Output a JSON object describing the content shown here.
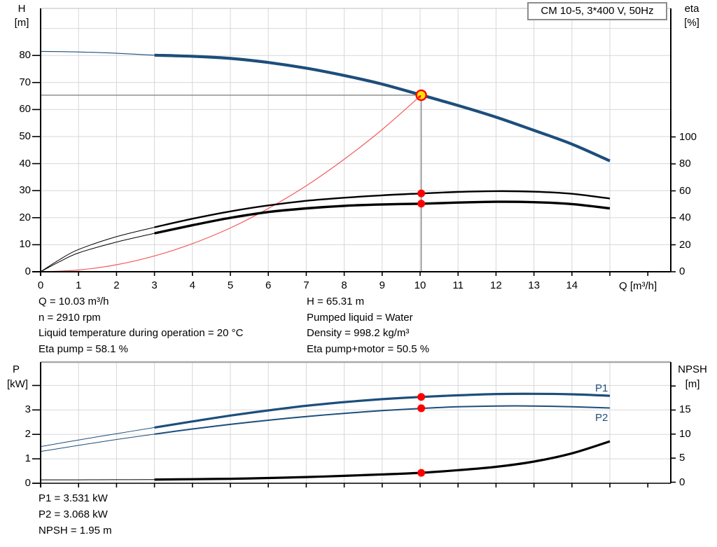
{
  "title_box": {
    "label": "CM 10-5, 3*400 V, 50Hz"
  },
  "colors": {
    "curve_blue": "#1d4e7b",
    "black": "#000000",
    "system_red": "#f25c5c",
    "dot_red": "#fe0000",
    "duty_yellow": "#ffe105",
    "grid": "#d7d7d7",
    "crosshair": "#8f8f8f",
    "chart_border_top": "#c9c9c9",
    "chart_border_strong": "#a9a9a9"
  },
  "top_chart": {
    "y_left_label_line1": "H",
    "y_left_label_line2": "[m]",
    "y_right_label_line1": "eta",
    "y_right_label_line2": "[%]",
    "x_label": "Q [m³/h]"
  },
  "bottom_chart": {
    "y_left_label_line1": "P",
    "y_left_label_line2": "[kW]",
    "y_right_label_line1": "NPSH",
    "y_right_label_line2": "[m]",
    "p1_label": "P1",
    "p2_label": "P2"
  },
  "info_left": [
    "Q = 10.03 m³/h",
    "n = 2910 rpm",
    "Liquid temperature during operation = 20 °C",
    "Eta pump = 58.1 %"
  ],
  "info_right": [
    "H = 65.31 m",
    "Pumped liquid = Water",
    "Density = 998.2 kg/m³",
    "Eta pump+motor = 50.5 %"
  ],
  "info_bottom": [
    "P1 = 3.531 kW",
    "P2 = 3.068 kW",
    "NPSH = 1.95 m"
  ],
  "chart_data": [
    {
      "type": "line",
      "id": "head-efficiency-chart",
      "x_axis": {
        "label": "Q [m³/h]",
        "range": [
          0,
          16.6
        ],
        "labeled_ticks": [
          0,
          1,
          2,
          3,
          4,
          5,
          6,
          7,
          8,
          9,
          10,
          11,
          12,
          13,
          14
        ],
        "unlabeled_ticks": [
          15,
          16
        ],
        "gridlines": [
          1,
          2,
          3,
          4,
          5,
          6,
          7,
          8,
          9,
          10,
          11,
          12,
          13,
          14,
          15
        ]
      },
      "y_left_axis": {
        "label": "H [m]",
        "range": [
          0,
          97.4
        ],
        "labeled_ticks": [
          0,
          10,
          20,
          30,
          40,
          50,
          60,
          70,
          80
        ],
        "unlabeled_ticks": [],
        "gridlines": [
          10,
          20,
          30,
          40,
          50,
          60,
          70,
          80,
          90
        ]
      },
      "y_right_axis": {
        "label": "eta [%]",
        "range": [
          0,
          195
        ],
        "labeled_ticks": [
          0,
          20,
          40,
          60,
          80,
          100
        ],
        "unlabeled_ticks": []
      },
      "series": [
        {
          "name": "system-curve",
          "axis": "left",
          "color_key": "system_red",
          "width": 1.2,
          "points": [
            [
              0,
              0
            ],
            [
              1,
              0.65
            ],
            [
              2,
              2.6
            ],
            [
              3,
              5.85
            ],
            [
              4,
              10.4
            ],
            [
              5,
              16.2
            ],
            [
              6,
              23.4
            ],
            [
              7,
              31.8
            ],
            [
              8,
              41.6
            ],
            [
              9,
              52.6
            ],
            [
              10.03,
              65.31
            ]
          ]
        },
        {
          "name": "eta-pump-curve",
          "axis": "right",
          "color_key": "black",
          "width": 2.4,
          "thin_width": 1,
          "thin_points": [
            [
              0,
              0
            ],
            [
              0.5,
              9
            ],
            [
              1,
              16.5
            ],
            [
              2,
              26
            ],
            [
              3,
              33
            ]
          ],
          "points": [
            [
              3,
              33
            ],
            [
              4,
              39.3
            ],
            [
              5,
              44.8
            ],
            [
              6,
              49.2
            ],
            [
              7,
              52.6
            ],
            [
              8,
              54.9
            ],
            [
              9,
              56.7
            ],
            [
              10,
              58.05
            ],
            [
              11,
              59.2
            ],
            [
              12,
              59.8
            ],
            [
              13,
              59.4
            ],
            [
              14,
              57.8
            ],
            [
              15,
              54.3
            ]
          ]
        },
        {
          "name": "eta-pump-motor-curve",
          "axis": "right",
          "color_key": "black",
          "width": 3.4,
          "thin_width": 1,
          "thin_points": [
            [
              0,
              0
            ],
            [
              0.5,
              7.5
            ],
            [
              1,
              14
            ],
            [
              2,
              22
            ],
            [
              3,
              28.5
            ]
          ],
          "points": [
            [
              3,
              28.5
            ],
            [
              4,
              34.5
            ],
            [
              5,
              40
            ],
            [
              6,
              44.3
            ],
            [
              7,
              47
            ],
            [
              8,
              48.9
            ],
            [
              9,
              49.9
            ],
            [
              10,
              50.45
            ],
            [
              11,
              51.3
            ],
            [
              12,
              51.9
            ],
            [
              13,
              51.6
            ],
            [
              14,
              50.2
            ],
            [
              15,
              47
            ]
          ]
        },
        {
          "name": "head-curve",
          "axis": "left",
          "color_key": "curve_blue",
          "width": 4.2,
          "thin_width": 1.1,
          "thin_points": [
            [
              0,
              81.5
            ],
            [
              1,
              81.3
            ],
            [
              2,
              80.8
            ],
            [
              3,
              80.1
            ]
          ],
          "points": [
            [
              3,
              80.1
            ],
            [
              4,
              79.7
            ],
            [
              5,
              78.9
            ],
            [
              6,
              77.4
            ],
            [
              7,
              75.3
            ],
            [
              8,
              72.6
            ],
            [
              9,
              69.4
            ],
            [
              10,
              65.5
            ],
            [
              11,
              61.5
            ],
            [
              12,
              57.2
            ],
            [
              13,
              52.3
            ],
            [
              14,
              47.2
            ],
            [
              15,
              41
            ]
          ]
        }
      ],
      "duty_point": {
        "q": 10.03,
        "value": 65.31,
        "axis": "left"
      },
      "dots": [
        {
          "q": 10.03,
          "value": 58.1,
          "axis": "right"
        },
        {
          "q": 10.03,
          "value": 50.5,
          "axis": "right"
        }
      ]
    },
    {
      "type": "line",
      "id": "power-npsh-chart",
      "x_axis": {
        "label": "",
        "range": [
          0,
          16.6
        ],
        "labeled_ticks": [],
        "unlabeled_ticks": [
          0,
          1,
          2,
          3,
          4,
          5,
          6,
          7,
          8,
          9,
          10,
          11,
          12,
          13,
          14,
          15,
          16
        ],
        "gridlines": [
          1,
          2,
          3,
          4,
          5,
          6,
          7,
          8,
          9,
          10,
          11,
          12,
          13,
          14,
          15
        ]
      },
      "y_left_axis": {
        "label": "P [kW]",
        "range": [
          0,
          5
        ],
        "labeled_ticks": [
          0,
          1,
          2,
          3
        ],
        "unlabeled_ticks": [
          4
        ],
        "gridlines": [
          1,
          2,
          3,
          4
        ]
      },
      "y_right_axis": {
        "label": "NPSH [m]",
        "range": [
          0,
          25
        ],
        "labeled_ticks": [
          0,
          5,
          10,
          15
        ],
        "unlabeled_ticks": [
          20
        ]
      },
      "series": [
        {
          "name": "npsh-curve",
          "axis": "right",
          "color_key": "black",
          "width": 3.2,
          "thin_width": 1,
          "thin_points": [
            [
              0,
              0.5
            ],
            [
              1,
              0.5
            ],
            [
              2,
              0.52
            ],
            [
              3,
              0.55
            ]
          ],
          "points": [
            [
              3,
              0.55
            ],
            [
              4,
              0.62
            ],
            [
              5,
              0.72
            ],
            [
              6,
              0.87
            ],
            [
              7,
              1.07
            ],
            [
              8,
              1.33
            ],
            [
              9,
              1.62
            ],
            [
              10,
              1.95
            ],
            [
              11,
              2.5
            ],
            [
              12,
              3.2
            ],
            [
              13,
              4.3
            ],
            [
              14,
              6.0
            ],
            [
              15,
              8.5
            ]
          ]
        },
        {
          "name": "p2-curve",
          "axis": "left",
          "color_key": "curve_blue",
          "width": 2,
          "thin_width": 1,
          "thin_points": [
            [
              0,
              1.3
            ],
            [
              1,
              1.55
            ],
            [
              2,
              1.79
            ],
            [
              3,
              2.01
            ]
          ],
          "points": [
            [
              3,
              2.01
            ],
            [
              4,
              2.22
            ],
            [
              5,
              2.41
            ],
            [
              6,
              2.58
            ],
            [
              7,
              2.73
            ],
            [
              8,
              2.86
            ],
            [
              9,
              2.97
            ],
            [
              10,
              3.06
            ],
            [
              11,
              3.13
            ],
            [
              12,
              3.16
            ],
            [
              13,
              3.16
            ],
            [
              14,
              3.13
            ],
            [
              15,
              3.08
            ]
          ]
        },
        {
          "name": "p1-curve",
          "axis": "left",
          "color_key": "curve_blue",
          "width": 3.2,
          "thin_width": 1,
          "thin_points": [
            [
              0,
              1.5
            ],
            [
              1,
              1.77
            ],
            [
              2,
              2.03
            ],
            [
              3,
              2.28
            ]
          ],
          "points": [
            [
              3,
              2.28
            ],
            [
              4,
              2.53
            ],
            [
              5,
              2.77
            ],
            [
              6,
              2.98
            ],
            [
              7,
              3.17
            ],
            [
              8,
              3.32
            ],
            [
              9,
              3.44
            ],
            [
              10,
              3.53
            ],
            [
              11,
              3.6
            ],
            [
              12,
              3.65
            ],
            [
              13,
              3.66
            ],
            [
              14,
              3.64
            ],
            [
              15,
              3.58
            ]
          ]
        }
      ],
      "dots": [
        {
          "q": 10.03,
          "value": 3.531,
          "axis": "left"
        },
        {
          "q": 10.03,
          "value": 3.068,
          "axis": "left"
        },
        {
          "q": 10.03,
          "value": 1.95,
          "axis": "right"
        }
      ]
    }
  ]
}
